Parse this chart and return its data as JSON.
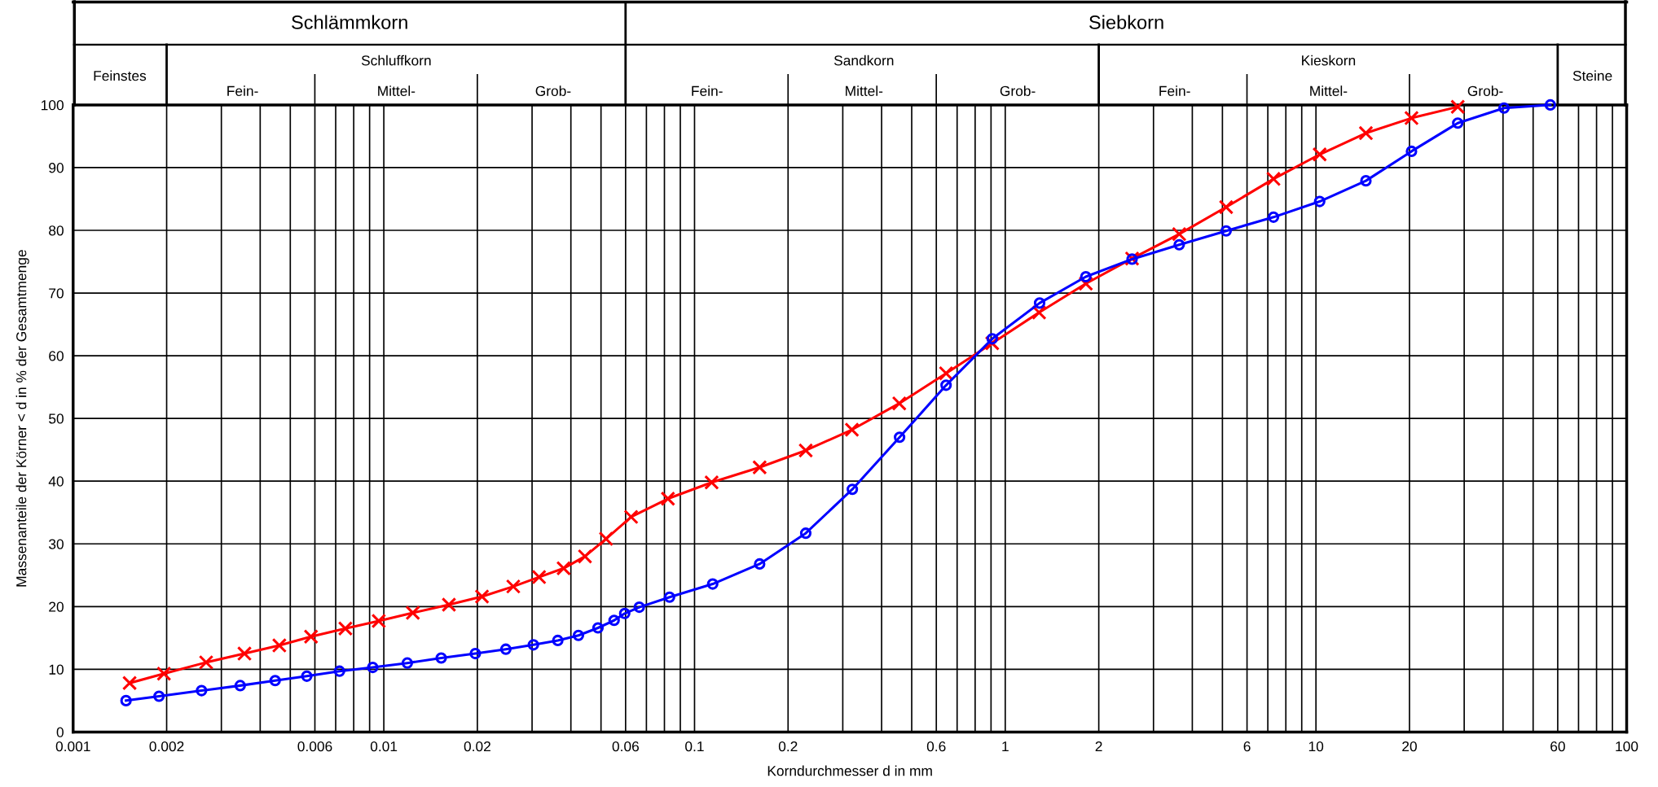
{
  "chart_data": {
    "type": "line",
    "xlabel": "Korndurchmesser d in mm",
    "ylabel": "Massenanteile der Körner < d in % der Gesamtmenge",
    "log": "x",
    "grid": true,
    "xlim": [
      0.001,
      100
    ],
    "ylim": [
      0,
      100
    ],
    "xticks": [
      0.001,
      0.002,
      {
        "value": 0.003,
        "label": null
      },
      {
        "value": 0.004,
        "label": null
      },
      {
        "value": 0.005,
        "label": null
      },
      0.006,
      {
        "value": 0.007,
        "label": null
      },
      {
        "value": 0.008,
        "label": null
      },
      {
        "value": 0.009,
        "label": null
      },
      0.01,
      0.02,
      {
        "value": 0.03,
        "label": null
      },
      {
        "value": 0.04,
        "label": null
      },
      {
        "value": 0.05,
        "label": null
      },
      0.06,
      {
        "value": 0.07,
        "label": null
      },
      {
        "value": 0.08,
        "label": null
      },
      {
        "value": 0.09,
        "label": null
      },
      0.1,
      0.2,
      {
        "value": 0.3,
        "label": null
      },
      {
        "value": 0.4,
        "label": null
      },
      {
        "value": 0.5,
        "label": null
      },
      0.6,
      {
        "value": 0.7,
        "label": null
      },
      {
        "value": 0.8,
        "label": null
      },
      {
        "value": 0.9,
        "label": null
      },
      1,
      2,
      {
        "value": 3,
        "label": null
      },
      {
        "value": 4,
        "label": null
      },
      {
        "value": 5,
        "label": null
      },
      6,
      {
        "value": 7,
        "label": null
      },
      {
        "value": 8,
        "label": null
      },
      {
        "value": 9,
        "label": null
      },
      10,
      20,
      {
        "value": 30,
        "label": null
      },
      {
        "value": 40,
        "label": null
      },
      {
        "value": 50,
        "label": null
      },
      60,
      {
        "value": 70,
        "label": null
      },
      {
        "value": 80,
        "label": null
      },
      {
        "value": 90,
        "label": null
      },
      100
    ],
    "yticks": [
      0,
      10,
      20,
      30,
      40,
      50,
      60,
      70,
      80,
      90,
      100
    ],
    "annotations": [
      "Schlämmkorn",
      "Siebkorn",
      "Feinstes",
      "Schluffkorn",
      "Sandkorn",
      "Kieskorn",
      "Steine",
      "Fein-",
      "Mittel-",
      "Grob-",
      "Fein-",
      "Mittel-",
      "Grob-",
      "Fein-",
      "Mittel-",
      "Grob-"
    ],
    "series": [
      {
        "color": "#ff0000",
        "marker": "cross",
        "x": [
          0.00152,
          0.00196,
          0.00268,
          0.00356,
          0.00461,
          0.00583,
          0.00752,
          0.00963,
          0.0124,
          0.0162,
          0.0207,
          0.0261,
          0.0316,
          0.0379,
          0.0444,
          0.0519,
          0.0625,
          0.0821,
          0.1135,
          0.162,
          0.228,
          0.321,
          0.456,
          0.645,
          0.908,
          1.285,
          1.817,
          2.56,
          3.63,
          5.14,
          7.3,
          10.28,
          14.48,
          20.3,
          28.6
        ],
        "values": [
          7.8,
          9.3,
          11.1,
          12.5,
          13.8,
          15.2,
          16.5,
          17.7,
          19.0,
          20.3,
          21.6,
          23.2,
          24.7,
          26.1,
          28.0,
          30.8,
          34.3,
          37.2,
          39.8,
          42.2,
          44.9,
          48.2,
          52.4,
          57.2,
          62.0,
          66.9,
          71.5,
          75.5,
          79.4,
          83.7,
          88.2,
          92.1,
          95.5,
          97.9,
          99.7
        ]
      },
      {
        "color": "#0000ff",
        "marker": "circle",
        "x": [
          0.00148,
          0.00189,
          0.00259,
          0.00345,
          0.00447,
          0.00565,
          0.0072,
          0.00921,
          0.0119,
          0.0153,
          0.0197,
          0.0247,
          0.0303,
          0.0363,
          0.0423,
          0.0489,
          0.0551,
          0.0596,
          0.0664,
          0.0831,
          0.1144,
          0.162,
          0.228,
          0.322,
          0.457,
          0.645,
          0.908,
          1.29,
          1.817,
          2.56,
          3.63,
          5.14,
          7.3,
          10.28,
          14.48,
          20.3,
          28.6,
          40.3,
          56.8
        ],
        "values": [
          5.0,
          5.7,
          6.6,
          7.4,
          8.2,
          8.9,
          9.7,
          10.3,
          11.0,
          11.8,
          12.5,
          13.2,
          13.9,
          14.6,
          15.4,
          16.6,
          17.8,
          18.9,
          19.9,
          21.5,
          23.6,
          26.8,
          31.7,
          38.7,
          47.0,
          55.3,
          62.7,
          68.4,
          72.6,
          75.4,
          77.7,
          79.9,
          82.1,
          84.6,
          87.9,
          92.6,
          97.1,
          99.5,
          100.0
        ]
      }
    ]
  }
}
